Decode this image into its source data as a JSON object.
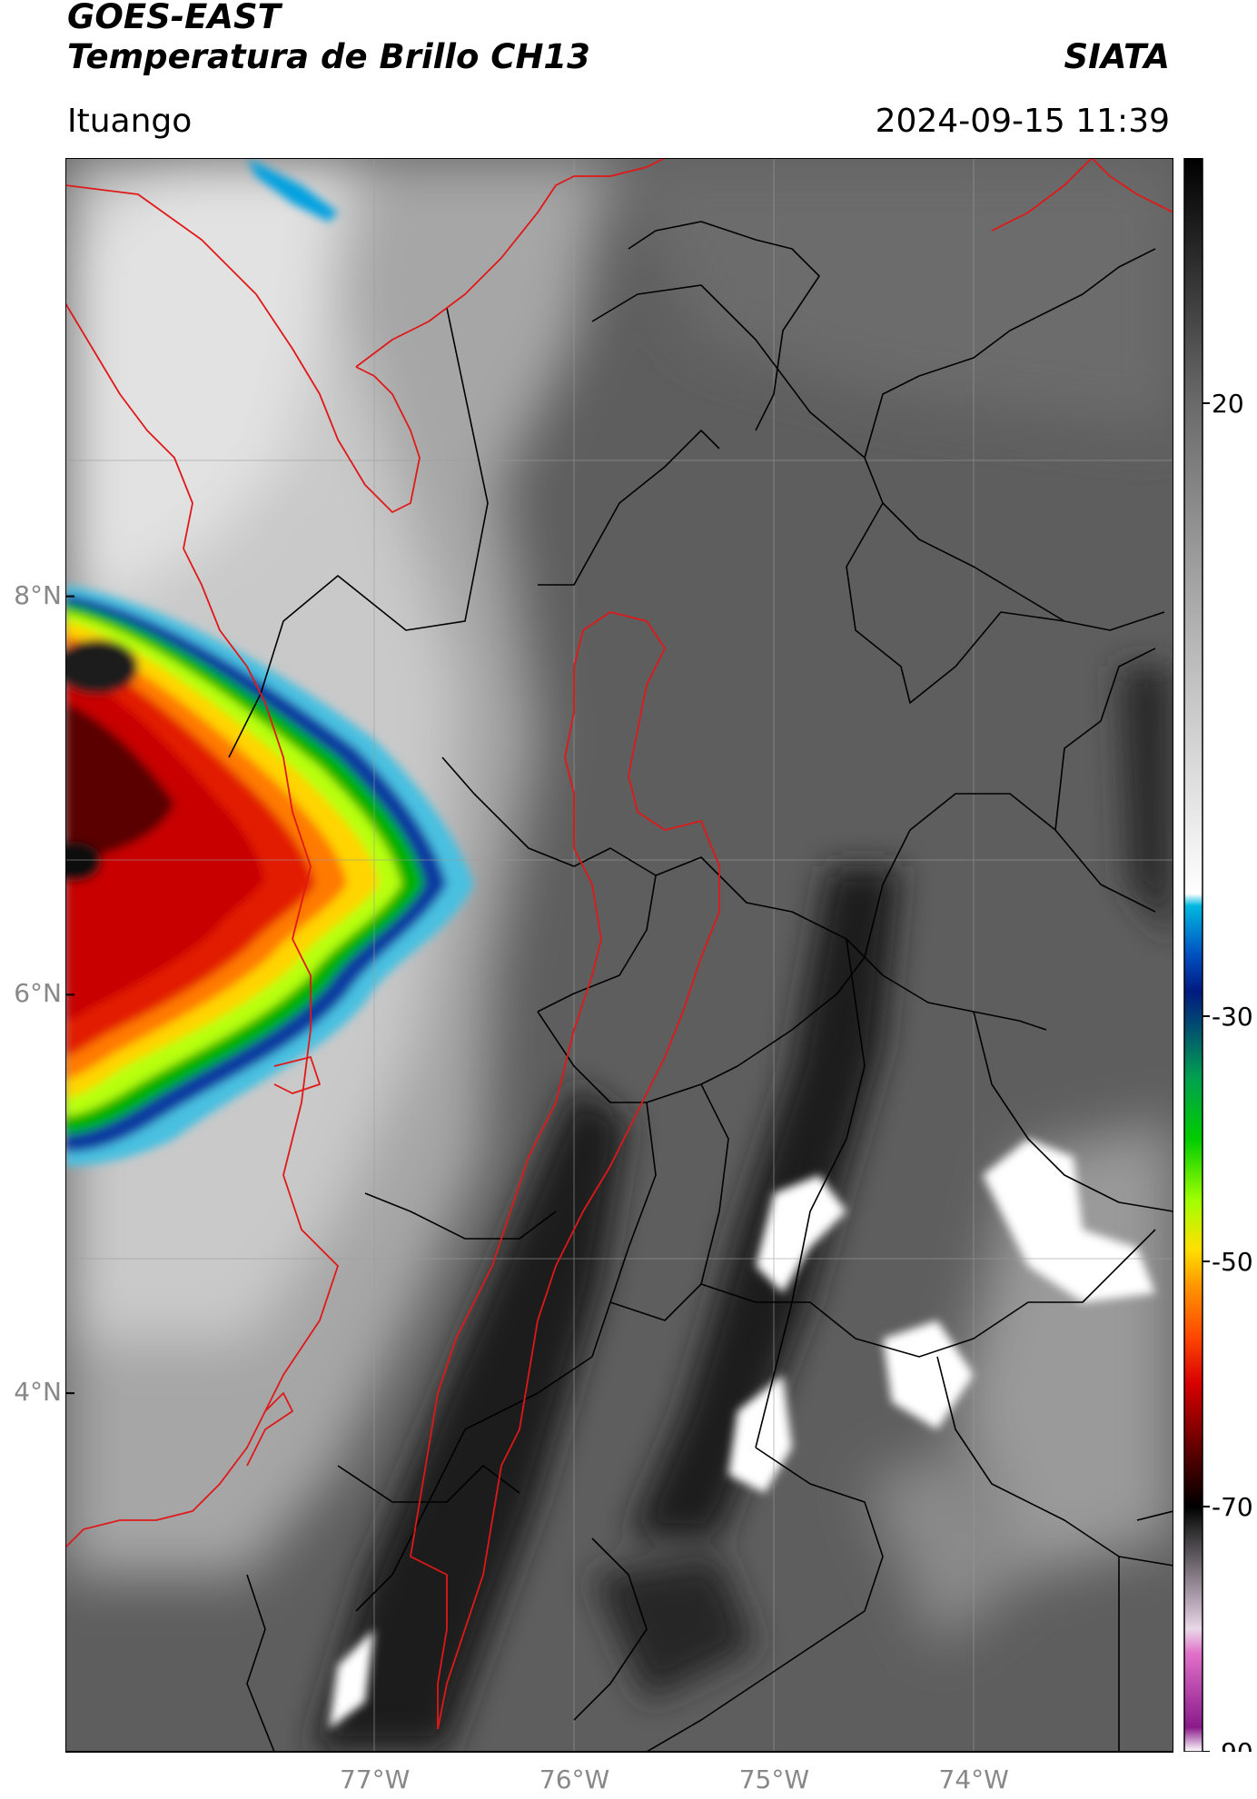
{
  "header": {
    "satellite": "GOES-EAST",
    "product": "Temperatura de Brillo CH13",
    "agency": "SIATA",
    "region": "Ituango",
    "timestamp": "2024-09-15 11:39"
  },
  "map": {
    "lat_range": [
      2.2,
      10.2
    ],
    "lon_range": [
      -78.55,
      -73.0
    ],
    "lat_ticks": [
      {
        "value": 8,
        "label": "8°N"
      },
      {
        "value": 6,
        "label": "6°N"
      },
      {
        "value": 4,
        "label": "4°N"
      }
    ],
    "lon_ticks": [
      {
        "value": -77,
        "label": "77°W"
      },
      {
        "value": -76,
        "label": "76°W"
      },
      {
        "value": -75,
        "label": "75°W"
      },
      {
        "value": -74,
        "label": "74°W"
      }
    ],
    "gridlines": true
  },
  "colorbar": {
    "range": [
      -90,
      40
    ],
    "ticks": [
      {
        "value": 20,
        "label": "20"
      },
      {
        "value": -30,
        "label": "-30"
      },
      {
        "value": -50,
        "label": "-50"
      },
      {
        "value": -70,
        "label": "-70"
      },
      {
        "value": -90,
        "label": "-90"
      }
    ],
    "stops": [
      {
        "value": -90,
        "color": "#ffffff"
      },
      {
        "value": -88,
        "color": "#8a1a8a"
      },
      {
        "value": -82,
        "color": "#e070c8"
      },
      {
        "value": -80,
        "color": "#e8d8e8"
      },
      {
        "value": -78,
        "color": "#bbaabb"
      },
      {
        "value": -72,
        "color": "#303030"
      },
      {
        "value": -70,
        "color": "#000000"
      },
      {
        "value": -66,
        "color": "#500000"
      },
      {
        "value": -60,
        "color": "#d80000"
      },
      {
        "value": -56,
        "color": "#ff4a00"
      },
      {
        "value": -52,
        "color": "#ff9600"
      },
      {
        "value": -49,
        "color": "#ffe000"
      },
      {
        "value": -45,
        "color": "#a0ff00"
      },
      {
        "value": -40,
        "color": "#00cc00"
      },
      {
        "value": -35,
        "color": "#00a050"
      },
      {
        "value": -31,
        "color": "#005070"
      },
      {
        "value": -28,
        "color": "#001a80"
      },
      {
        "value": -25,
        "color": "#0050c0"
      },
      {
        "value": -21,
        "color": "#00b8e0"
      },
      {
        "value": -20,
        "color": "#ffffff"
      },
      {
        "value": 0,
        "color": "#b8b8b8"
      },
      {
        "value": 20,
        "color": "#6a6a6a"
      },
      {
        "value": 40,
        "color": "#000000"
      }
    ]
  }
}
